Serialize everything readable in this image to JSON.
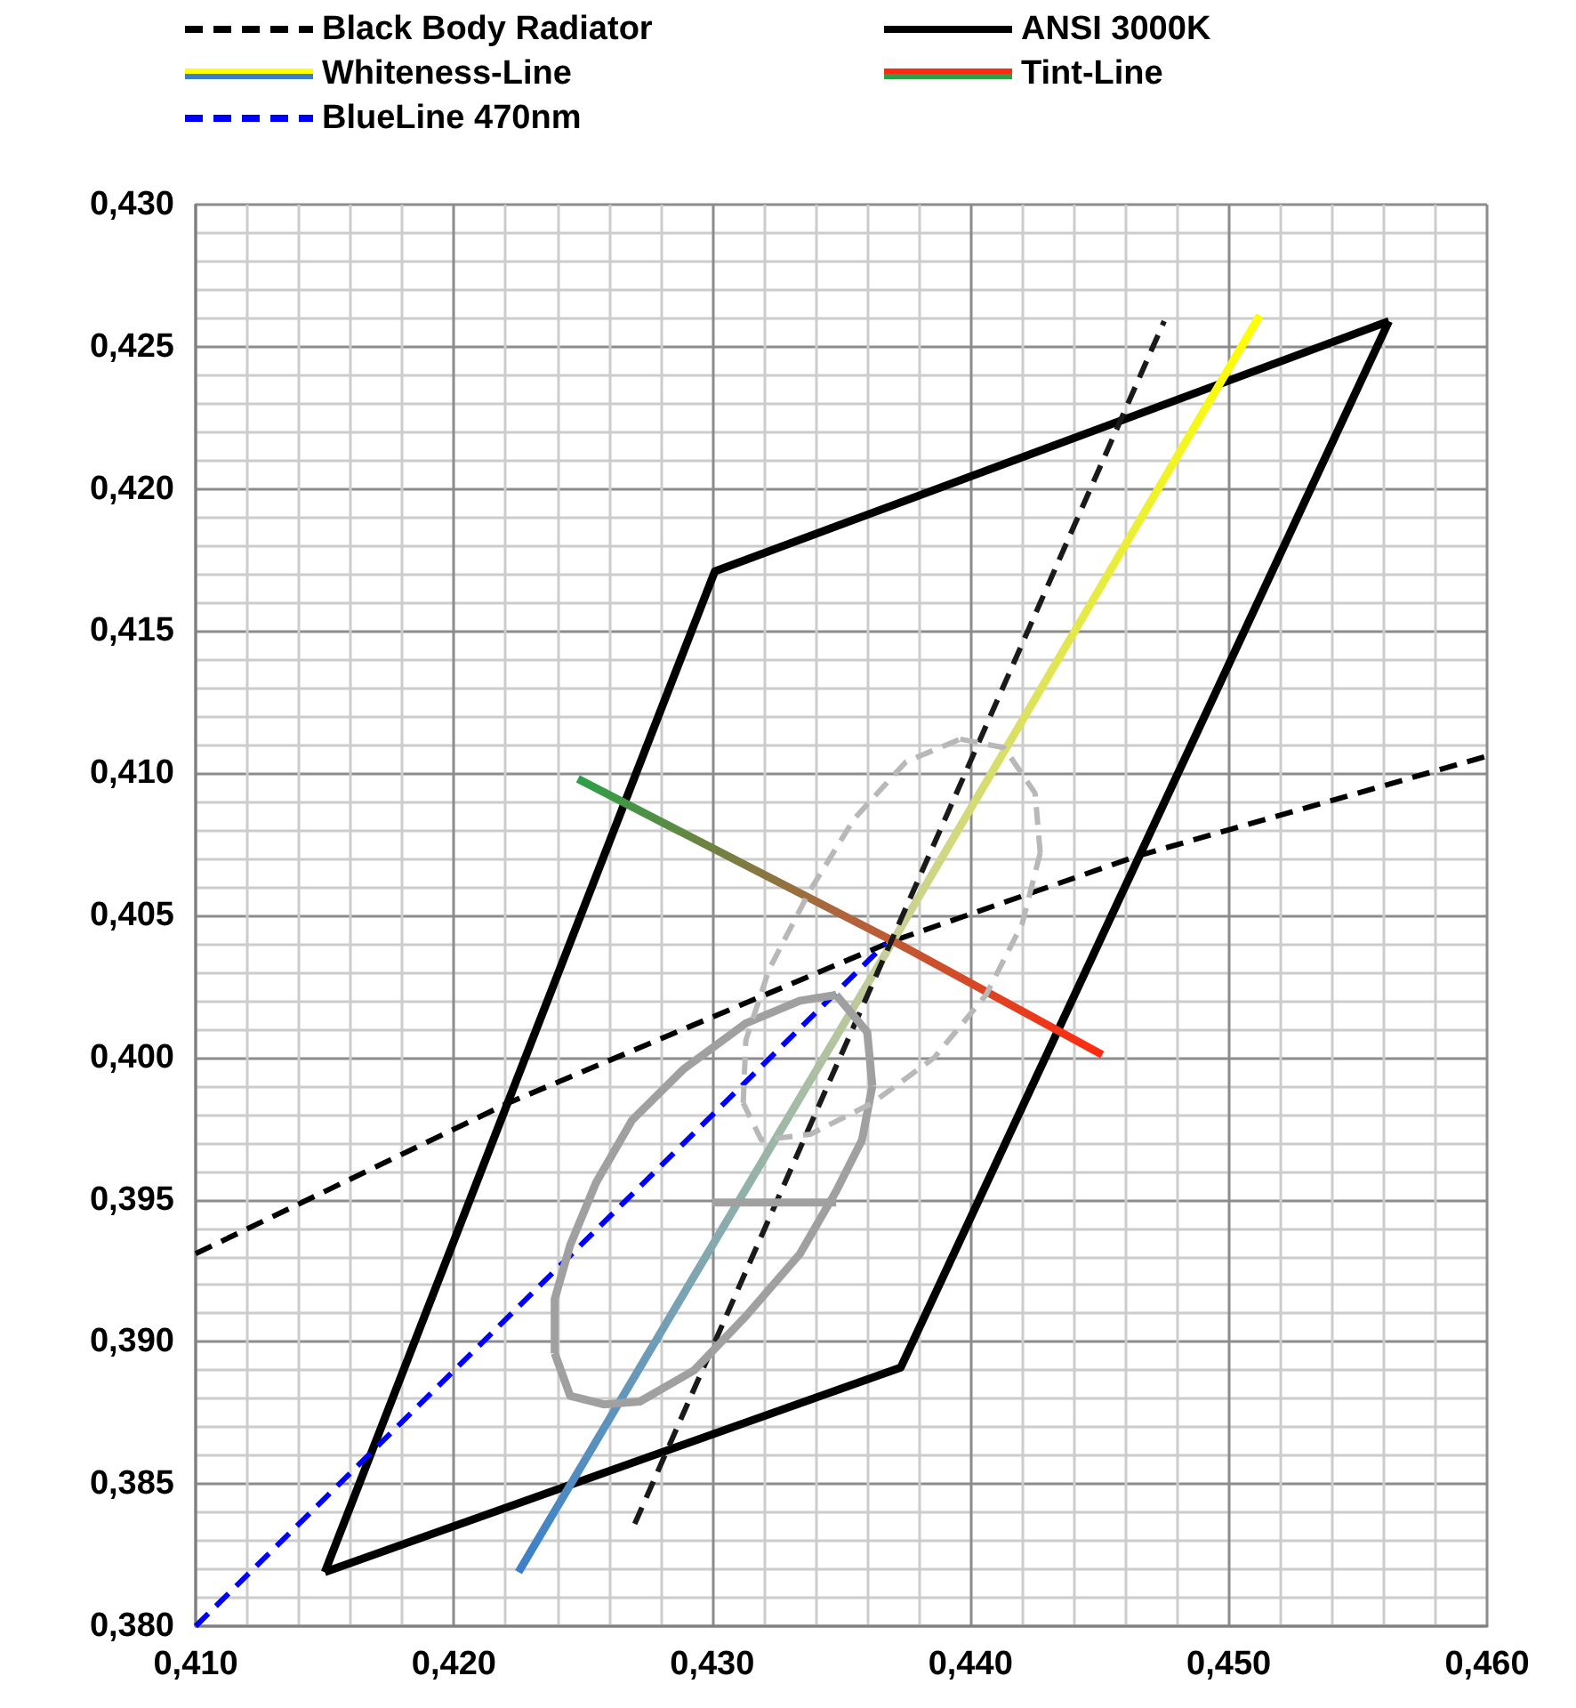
{
  "chart_data": {
    "type": "line",
    "xlim": [
      0.41,
      0.46
    ],
    "ylim": [
      0.38,
      0.43
    ],
    "xticks": [
      {
        "value": 0.41,
        "label": "0,410"
      },
      {
        "value": 0.42,
        "label": "0,420"
      },
      {
        "value": 0.43,
        "label": "0,430"
      },
      {
        "value": 0.44,
        "label": "0,440"
      },
      {
        "value": 0.45,
        "label": "0,450"
      },
      {
        "value": 0.46,
        "label": "0,460"
      }
    ],
    "yticks": [
      {
        "value": 0.38,
        "label": "0,380"
      },
      {
        "value": 0.385,
        "label": "0,385"
      },
      {
        "value": 0.39,
        "label": "0,390"
      },
      {
        "value": 0.395,
        "label": "0,395"
      },
      {
        "value": 0.4,
        "label": "0,400"
      },
      {
        "value": 0.405,
        "label": "0,405"
      },
      {
        "value": 0.41,
        "label": "0,410"
      },
      {
        "value": 0.415,
        "label": "0,415"
      },
      {
        "value": 0.42,
        "label": "0,420"
      },
      {
        "value": 0.425,
        "label": "0,425"
      },
      {
        "value": 0.43,
        "label": "0,430"
      }
    ],
    "grid": true,
    "legend": "top",
    "marker": "none",
    "series": [
      {
        "name": "Black Body Radiator",
        "color": "#000000",
        "line_style": "dashed",
        "x": [
          0.41,
          0.4221,
          0.437,
          0.4465,
          0.46
        ],
        "values": [
          0.3931,
          0.3984,
          0.4041,
          0.4071,
          0.4106
        ]
      },
      {
        "name": "ANSI 3000K",
        "color": "#000000",
        "line_style": "solid",
        "x": [
          0.415,
          0.4301,
          0.4562,
          null,
          0.4562,
          0.4373,
          0.415
        ],
        "values": [
          0.3819,
          0.4171,
          0.4259,
          null,
          0.4259,
          0.3891,
          0.3819
        ]
      },
      {
        "name": "Whiteness-Line",
        "colors": [
          "#3c7fc8",
          "#c8d098",
          "#ffff00"
        ],
        "line_style": "solid",
        "x": [
          0.4225,
          0.437,
          0.4512
        ],
        "values": [
          0.3819,
          0.4041,
          0.4261
        ]
      },
      {
        "name": "Tint-Line",
        "colors": [
          "#2ca048",
          "#b0643c",
          "#ff2a10"
        ],
        "line_style": "solid",
        "x": [
          0.4248,
          0.437,
          0.4451
        ],
        "values": [
          0.4098,
          0.4041,
          0.4001
        ]
      },
      {
        "name": "BlueLine 470nm",
        "color": "#0000ff",
        "line_style": "dashed",
        "x": [
          0.41,
          0.4367
        ],
        "values": [
          0.38,
          0.404
        ]
      },
      {
        "color": "#1a1a1a",
        "line_style": "dashed",
        "x": [
          0.427,
          0.4475
        ],
        "values": [
          0.3836,
          0.4259
        ]
      },
      {
        "color": "#a0a0a0",
        "line_style": "solid",
        "x": [
          0.4348,
          0.436,
          0.4362,
          null,
          0.4362,
          0.4358,
          0.4348,
          0.4334,
          0.4313,
          0.4293,
          0.4272,
          0.4258,
          0.4245,
          0.4239,
          null,
          0.4239,
          0.4239,
          0.4245,
          0.4255,
          0.4269,
          0.4289,
          0.4313,
          0.4334,
          0.4348,
          null,
          0.43,
          0.4348
        ],
        "values": [
          0.4022,
          0.4009,
          0.399,
          null,
          0.399,
          0.3971,
          0.3953,
          0.3931,
          0.3909,
          0.389,
          0.3879,
          0.3878,
          0.3881,
          0.3896,
          null,
          0.3896,
          0.3915,
          0.3934,
          0.3956,
          0.3978,
          0.3996,
          0.4012,
          0.402,
          0.4022,
          null,
          0.3949,
          0.3949
        ]
      },
      {
        "color": "#b8b8b8",
        "line_style": "dashed",
        "x": [
          0.4396,
          0.4413,
          0.4425,
          0.4427,
          null,
          0.4427,
          0.442,
          0.4406,
          0.4386,
          0.4362,
          0.4338,
          0.4319,
          0.4312,
          null,
          0.4312,
          0.4313,
          0.4322,
          0.4338,
          0.4355,
          0.4375,
          0.4396
        ],
        "values": [
          0.4112,
          0.4109,
          0.4093,
          0.4072,
          null,
          0.4072,
          0.4047,
          0.4022,
          0.4,
          0.3984,
          0.3973,
          0.3971,
          0.3984,
          null,
          0.3984,
          0.4006,
          0.4031,
          0.4059,
          0.4084,
          0.4104,
          0.4112
        ]
      }
    ]
  }
}
